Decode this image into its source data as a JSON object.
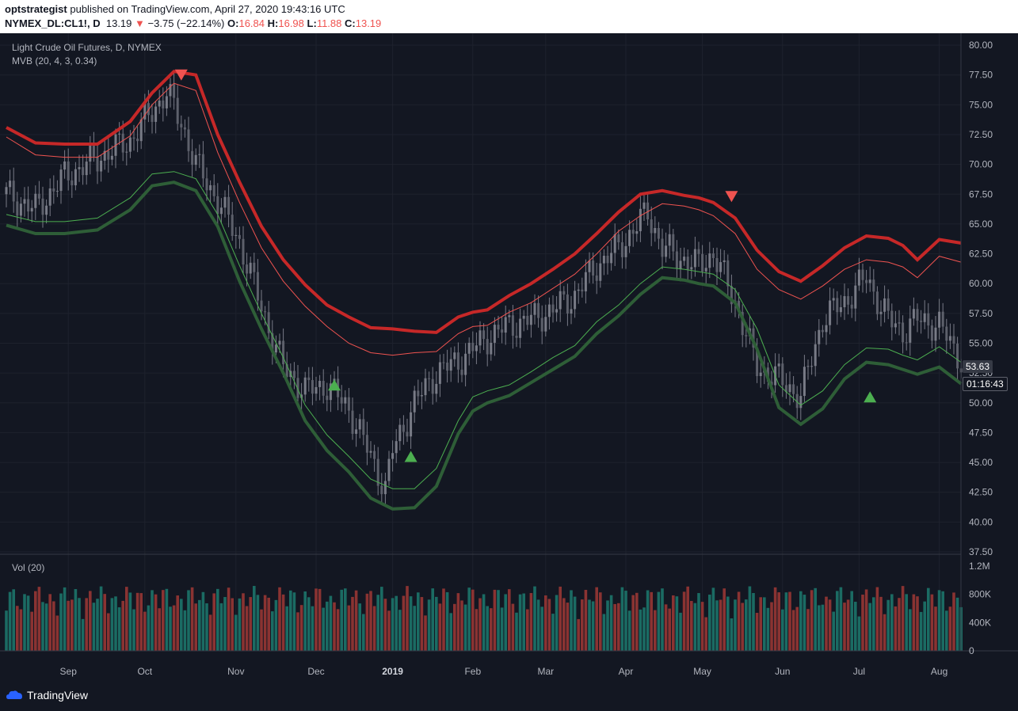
{
  "header": {
    "user": "optstrategist",
    "published_text": "published on TradingView.com, April 27, 2020 19:43:16 UTC",
    "symbol": "NYMEX_DL:CL1!, D",
    "last": "13.19",
    "change": "−3.75 (−22.14%)",
    "o_label": "O:",
    "o": "16.84",
    "h_label": "H:",
    "h": "16.98",
    "l_label": "L:",
    "l": "11.88",
    "c_label": "C:",
    "c": "13.19"
  },
  "legend": {
    "title": "Light Crude Oil Futures, D, NYMEX",
    "indicator": "MVB (20, 4, 3, 0.34)",
    "volume": "Vol (20)"
  },
  "price_tag": "53.63",
  "time_tag": "01:16:43",
  "footer": {
    "brand": "TradingView"
  },
  "colors": {
    "bg": "#131722",
    "grid": "#1e222d",
    "up": "#26a69a",
    "down": "#ef5350",
    "candle": "#787b86",
    "upper_band": "#c62828",
    "lower_band": "#2e5e37"
  },
  "chart_data": {
    "type": "line",
    "title": "Light Crude Oil Futures, D, NYMEX",
    "price_axis": {
      "ticks": [
        "80.00",
        "77.50",
        "75.00",
        "72.50",
        "70.00",
        "67.50",
        "65.00",
        "62.50",
        "60.00",
        "57.50",
        "55.00",
        "52.50",
        "50.00",
        "47.50",
        "45.00",
        "42.50",
        "40.00",
        "37.50"
      ],
      "ylim": [
        37.5,
        81.0
      ]
    },
    "time_axis": {
      "labels": [
        "Sep",
        "Oct",
        "Nov",
        "Dec",
        "2019",
        "Feb",
        "Mar",
        "Apr",
        "May",
        "Jun",
        "Jul",
        "Aug"
      ],
      "ticks_day": [
        17,
        38,
        63,
        85,
        106,
        128,
        148,
        170,
        191,
        213,
        234,
        256
      ]
    },
    "volume_axis": {
      "ticks": [
        "1.2M",
        "800K",
        "400K",
        "0"
      ],
      "ylim": [
        0,
        1200000
      ]
    },
    "series": [
      {
        "name": "MVB (20, 4, 3, 0.34)",
        "x": [
          0,
          8,
          16,
          25,
          34,
          40,
          46,
          52,
          58,
          64,
          70,
          76,
          82,
          88,
          94,
          100,
          106,
          112,
          118,
          124,
          128,
          132,
          138,
          144,
          150,
          156,
          162,
          168,
          174,
          180,
          186,
          190,
          194,
          200,
          206,
          212,
          218,
          224,
          230,
          236,
          242,
          246,
          250,
          256,
          262
        ],
        "upper_outer": [
          73.1,
          71.8,
          71.7,
          71.7,
          73.6,
          76.0,
          77.8,
          77.5,
          72.5,
          68.5,
          64.8,
          62.0,
          59.9,
          58.2,
          57.2,
          56.3,
          56.2,
          56.0,
          55.9,
          57.2,
          57.6,
          57.8,
          59.0,
          60.0,
          61.2,
          62.5,
          64.2,
          66.0,
          67.5,
          67.8,
          67.4,
          67.2,
          66.8,
          65.5,
          62.8,
          61.0,
          60.2,
          61.5,
          63.0,
          64.0,
          63.8,
          63.2,
          62.0,
          63.7,
          63.4
        ],
        "upper_inner": [
          72.3,
          70.8,
          70.6,
          70.6,
          72.4,
          75.0,
          76.8,
          76.2,
          71.0,
          66.8,
          63.0,
          60.2,
          58.1,
          56.4,
          55.0,
          54.2,
          54.0,
          54.2,
          54.3,
          55.8,
          56.4,
          56.5,
          57.6,
          58.4,
          59.6,
          60.8,
          62.5,
          64.4,
          65.7,
          66.7,
          66.5,
          66.2,
          65.7,
          64.2,
          61.2,
          59.5,
          58.7,
          59.8,
          61.2,
          62.0,
          61.8,
          61.4,
          60.5,
          62.3,
          61.8
        ],
        "lower_inner": [
          65.8,
          65.2,
          65.2,
          65.5,
          67.2,
          69.2,
          69.4,
          68.8,
          65.8,
          61.5,
          57.5,
          53.8,
          49.8,
          47.3,
          45.5,
          43.6,
          42.8,
          42.8,
          44.5,
          48.5,
          50.5,
          51.0,
          51.5,
          52.6,
          53.8,
          54.8,
          56.8,
          58.2,
          60.0,
          61.4,
          61.2,
          61.0,
          60.8,
          59.5,
          56.2,
          51.5,
          49.8,
          51.0,
          53.2,
          54.6,
          54.5,
          54.0,
          53.6,
          54.7,
          53.4
        ],
        "lower_outer": [
          64.9,
          64.2,
          64.2,
          64.5,
          66.2,
          68.2,
          68.5,
          67.8,
          64.8,
          60.2,
          56.2,
          52.5,
          48.5,
          46.0,
          44.2,
          42.0,
          41.1,
          41.2,
          43.0,
          47.4,
          49.3,
          50.0,
          50.6,
          51.7,
          52.8,
          53.9,
          55.8,
          57.3,
          59.1,
          60.5,
          60.3,
          60.0,
          59.8,
          58.4,
          54.5,
          49.6,
          48.2,
          49.5,
          52.0,
          53.4,
          53.2,
          52.8,
          52.4,
          53.0,
          51.6
        ]
      },
      {
        "name": "close",
        "x": [
          0,
          8,
          16,
          25,
          34,
          40,
          44,
          48,
          52,
          58,
          64,
          70,
          76,
          82,
          88,
          94,
          100,
          104,
          106,
          112,
          118,
          124,
          128,
          132,
          138,
          144,
          150,
          156,
          162,
          168,
          172,
          176,
          180,
          186,
          190,
          194,
          200,
          206,
          212,
          218,
          224,
          230,
          236,
          242,
          246,
          250,
          256,
          262
        ],
        "values": [
          67.5,
          66.2,
          69.0,
          70.5,
          72.0,
          74.5,
          76.0,
          73.5,
          70.0,
          67.0,
          63.5,
          58.0,
          53.0,
          51.0,
          51.5,
          49.5,
          45.5,
          42.8,
          46.0,
          50.0,
          52.5,
          53.5,
          54.5,
          55.5,
          56.5,
          57.0,
          57.8,
          59.0,
          61.5,
          63.0,
          64.5,
          66.0,
          63.0,
          62.0,
          61.5,
          62.5,
          58.5,
          53.0,
          52.0,
          50.5,
          57.0,
          58.5,
          60.5,
          57.0,
          56.0,
          57.0,
          56.5,
          53.6
        ]
      }
    ],
    "signals": [
      {
        "type": "sell",
        "x": 48,
        "y": 77.5
      },
      {
        "type": "buy",
        "x": 90,
        "y": 51.5
      },
      {
        "type": "buy",
        "x": 111,
        "y": 45.5
      },
      {
        "type": "sell",
        "x": 199,
        "y": 67.3
      },
      {
        "type": "buy",
        "x": 237,
        "y": 50.5
      }
    ]
  }
}
